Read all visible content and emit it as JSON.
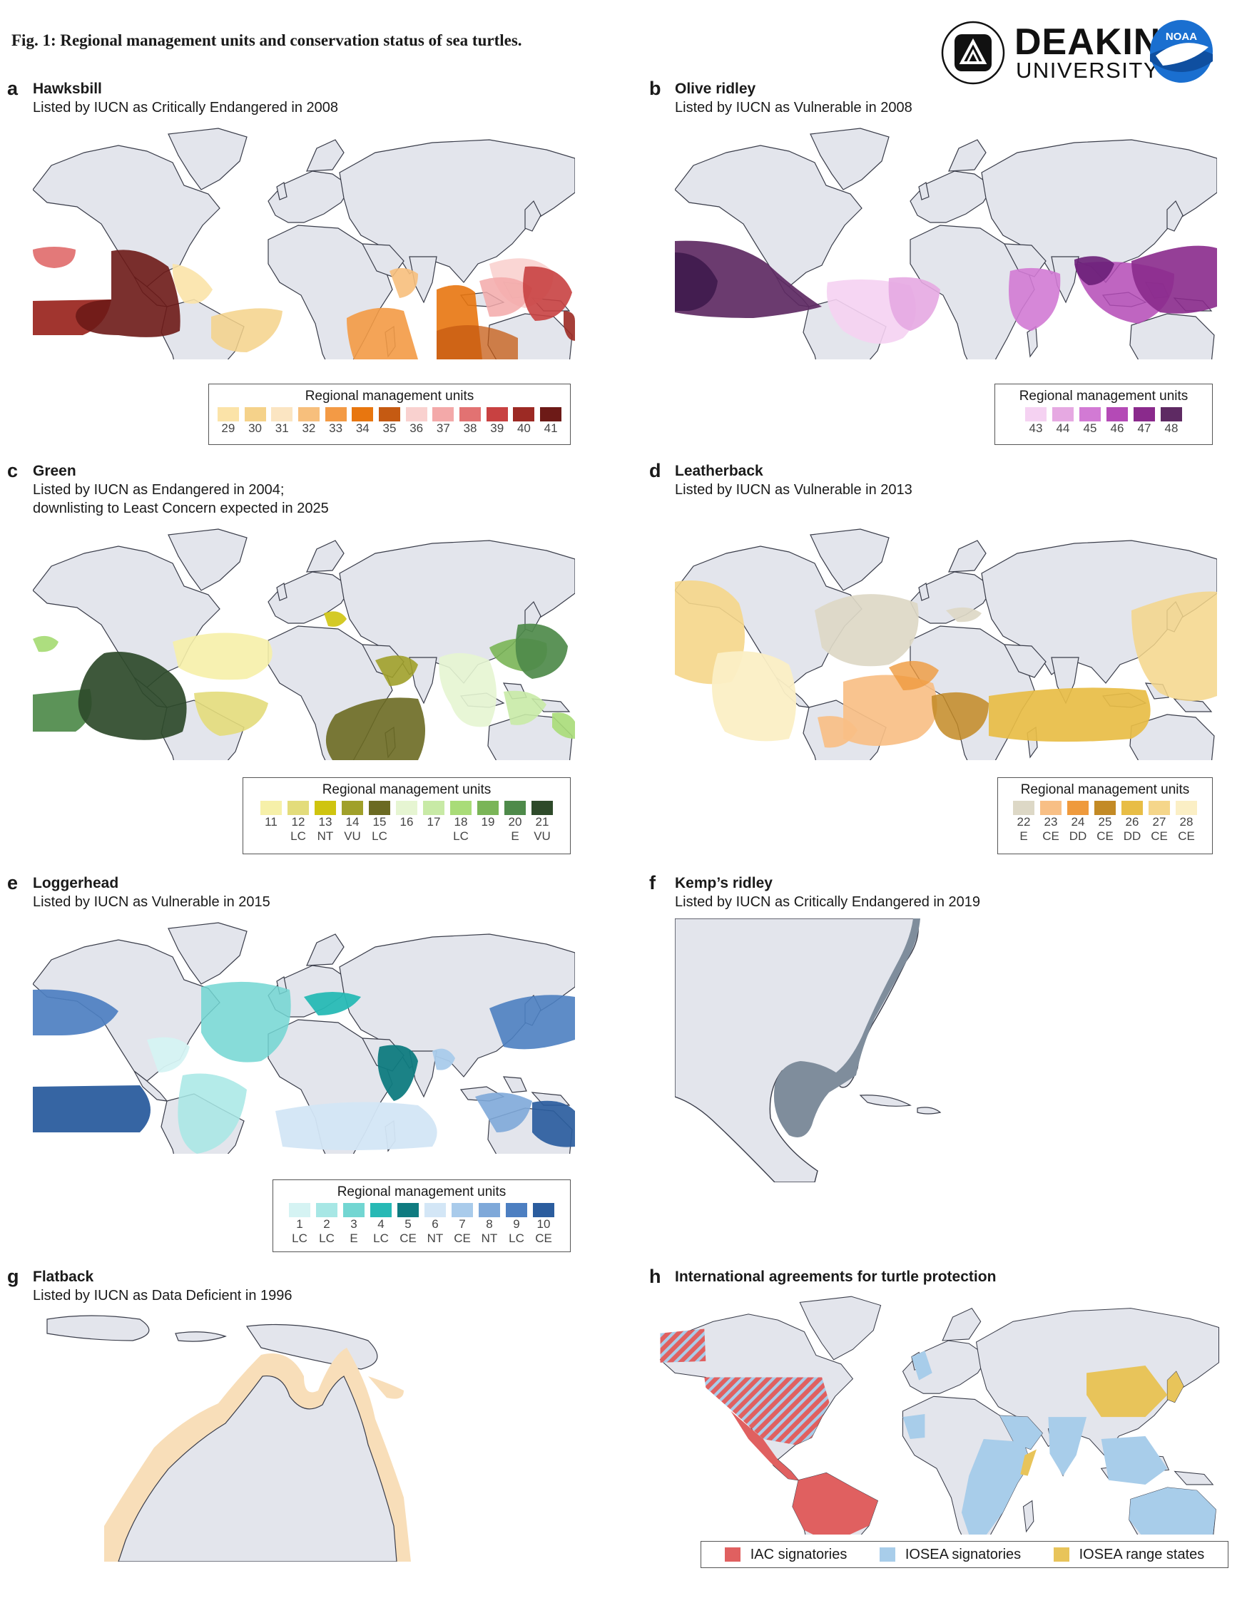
{
  "figure_title": "Fig. 1: Regional management units and conservation status of sea turtles.",
  "logos": {
    "deakin_name": "DEAKIN",
    "deakin_sub": "UNIVERSITY",
    "noaa_text": "NOAA"
  },
  "panels": {
    "a": {
      "label": "a",
      "name": "Hawksbill",
      "subtitle": "Listed by IUCN as Critically Endangered in 2008",
      "legend_title": "Regional management units",
      "units": [
        {
          "num": "29",
          "color": "#fbe3a8"
        },
        {
          "num": "30",
          "color": "#f5d28a"
        },
        {
          "num": "31",
          "color": "#fbe5c2"
        },
        {
          "num": "32",
          "color": "#f7bf7c"
        },
        {
          "num": "33",
          "color": "#f39a45"
        },
        {
          "num": "34",
          "color": "#e8760f"
        },
        {
          "num": "35",
          "color": "#c55a12"
        },
        {
          "num": "36",
          "color": "#f9d1cf"
        },
        {
          "num": "37",
          "color": "#f3a9a9"
        },
        {
          "num": "38",
          "color": "#e27272"
        },
        {
          "num": "39",
          "color": "#c84141"
        },
        {
          "num": "40",
          "color": "#9c2a24"
        },
        {
          "num": "41",
          "color": "#6d1a17"
        }
      ]
    },
    "b": {
      "label": "b",
      "name": "Olive ridley",
      "subtitle": "Listed by IUCN as Vulnerable in 2008",
      "legend_title": "Regional management units",
      "units": [
        {
          "num": "43",
          "color": "#f5d2f2"
        },
        {
          "num": "44",
          "color": "#e6a9e2"
        },
        {
          "num": "45",
          "color": "#d27ad4"
        },
        {
          "num": "46",
          "color": "#b44ab6"
        },
        {
          "num": "47",
          "color": "#8a2a8c"
        },
        {
          "num": "48",
          "color": "#5e2a63"
        }
      ]
    },
    "c": {
      "label": "c",
      "name": "Green",
      "subtitle": "Listed by IUCN as Endangered in 2004;",
      "subtitle2": "downlisting to Least Concern expected in 2025",
      "legend_title": "Regional management units",
      "units": [
        {
          "num": "11",
          "status": "",
          "color": "#f6f0a9"
        },
        {
          "num": "12",
          "status": "LC",
          "color": "#e3dc7b"
        },
        {
          "num": "13",
          "status": "NT",
          "color": "#cfc40f"
        },
        {
          "num": "14",
          "status": "VU",
          "color": "#a0a02a"
        },
        {
          "num": "15",
          "status": "LC",
          "color": "#6b6a22"
        },
        {
          "num": "16",
          "status": "",
          "color": "#e6f5d2"
        },
        {
          "num": "17",
          "status": "",
          "color": "#c8eaa6"
        },
        {
          "num": "18",
          "status": "LC",
          "color": "#a9dc78"
        },
        {
          "num": "19",
          "status": "",
          "color": "#7ab557"
        },
        {
          "num": "20",
          "status": "E",
          "color": "#4e8a4a"
        },
        {
          "num": "21",
          "status": "VU",
          "color": "#2e4a2a"
        }
      ]
    },
    "d": {
      "label": "d",
      "name": "Leatherback",
      "subtitle": "Listed by IUCN as Vulnerable in 2013",
      "legend_title": "Regional management units",
      "units": [
        {
          "num": "22",
          "status": "E",
          "color": "#ddd8c6"
        },
        {
          "num": "23",
          "status": "CE",
          "color": "#f8bf85"
        },
        {
          "num": "24",
          "status": "DD",
          "color": "#ef9a3d"
        },
        {
          "num": "25",
          "status": "CE",
          "color": "#c38a25"
        },
        {
          "num": "26",
          "status": "DD",
          "color": "#e8bd45"
        },
        {
          "num": "27",
          "status": "CE",
          "color": "#f5d68a"
        },
        {
          "num": "28",
          "status": "CE",
          "color": "#fbefc5"
        }
      ]
    },
    "e": {
      "label": "e",
      "name": "Loggerhead",
      "subtitle": "Listed by IUCN as Vulnerable in 2015",
      "legend_title": "Regional management units",
      "units": [
        {
          "num": "1",
          "status": "LC",
          "color": "#d5f3f3"
        },
        {
          "num": "2",
          "status": "LC",
          "color": "#a7e7e5"
        },
        {
          "num": "3",
          "status": "E",
          "color": "#72d6d2"
        },
        {
          "num": "4",
          "status": "LC",
          "color": "#27b9b5"
        },
        {
          "num": "5",
          "status": "CE",
          "color": "#0f7b80"
        },
        {
          "num": "6",
          "status": "NT",
          "color": "#d3e6f6"
        },
        {
          "num": "7",
          "status": "CE",
          "color": "#a9cbeb"
        },
        {
          "num": "8",
          "status": "NT",
          "color": "#7ea8d9"
        },
        {
          "num": "9",
          "status": "LC",
          "color": "#4d7fc1"
        },
        {
          "num": "10",
          "status": "CE",
          "color": "#2b5d9e"
        }
      ]
    },
    "f": {
      "label": "f",
      "name": "Kemp’s ridley",
      "subtitle": "Listed by IUCN as Critically Endangered in 2019",
      "range_color": "#7f8d9c"
    },
    "g": {
      "label": "g",
      "name": "Flatback",
      "subtitle": "Listed by IUCN as Data Deficient in 1996",
      "range_color": "#f8deb9"
    },
    "h": {
      "label": "h",
      "name": "International agreements for turtle protection",
      "legend": [
        {
          "label": "IAC signatories",
          "color": "#e06060"
        },
        {
          "label": "IOSEA signatories",
          "color": "#a8cdea"
        },
        {
          "label": "IOSEA range states",
          "color": "#e8c45a"
        }
      ]
    }
  },
  "colors": {
    "land": "#e3e5ec",
    "coast": "#3a3d4a"
  }
}
